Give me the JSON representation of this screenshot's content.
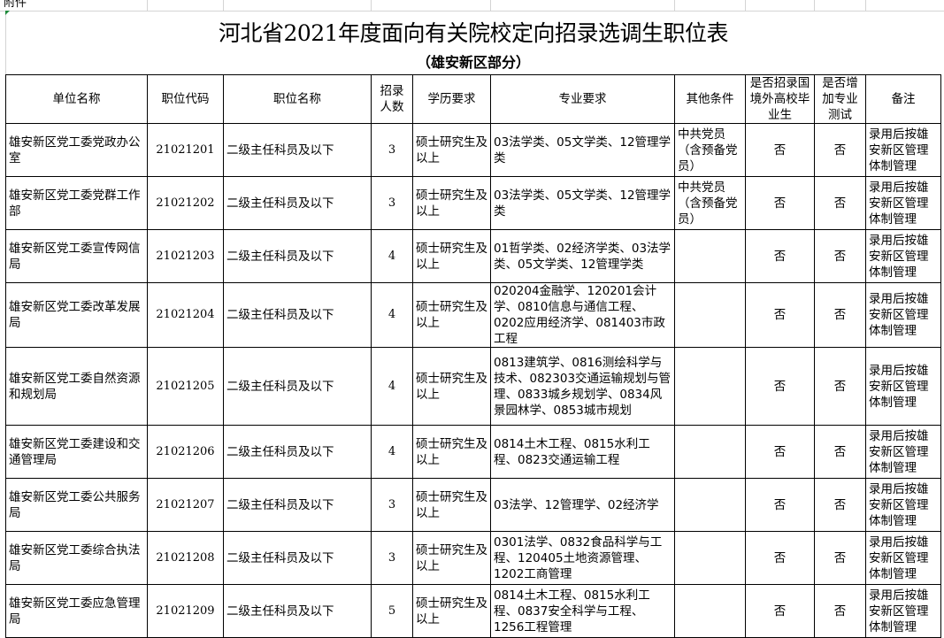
{
  "attachment_label": "附件",
  "title": "河北省2021年度面向有关院校定向招录选调生职位表",
  "subtitle": "（雄安新区部分）",
  "headers": [
    "单位名称",
    "职位代码",
    "职位名称",
    "招录人数",
    "学历要求",
    "专业要求",
    "其他条件",
    "是否招录国境外高校毕业生",
    "是否增加专业测试",
    "备注"
  ],
  "rows": [
    [
      "雄安新区党工委党政办公室",
      "21021201",
      "二级主任科员及以下",
      "3",
      "硕士研究生及以上",
      "03法学类、05文学类、12管理学类",
      "中共党员（含预备党员）",
      "否",
      "否",
      "录用后按雄安新区管理体制管理"
    ],
    [
      "雄安新区党工委党群工作部",
      "21021202",
      "二级主任科员及以下",
      "3",
      "硕士研究生及以上",
      "03法学类、05文学类、12管理学类",
      "中共党员（含预备党员）",
      "否",
      "否",
      "录用后按雄安新区管理体制管理"
    ],
    [
      "雄安新区党工委宣传网信局",
      "21021203",
      "二级主任科员及以下",
      "4",
      "硕士研究生及以上",
      "01哲学类、02经济学类、03法学类、05文学类、12管理学类",
      "",
      "否",
      "否",
      "录用后按雄安新区管理体制管理"
    ],
    [
      "雄安新区党工委改革发展局",
      "21021204",
      "二级主任科员及以下",
      "4",
      "硕士研究生及以上",
      "020204金融学、120201会计学、0810信息与通信工程、0202应用经济学、081403市政工程",
      "",
      "否",
      "否",
      "录用后按雄安新区管理体制管理"
    ],
    [
      "雄安新区党工委自然资源和规划局",
      "21021205",
      "二级主任科员及以下",
      "4",
      "硕士研究生及以上",
      "0813建筑学、0816测绘科学与技术、082303交通运输规划与管理、0833城乡规划学、0834风景园林学、0853城市规划",
      "",
      "否",
      "否",
      "录用后按雄安新区管理体制管理"
    ],
    [
      "雄安新区党工委建设和交通管理局",
      "21021206",
      "二级主任科员及以下",
      "4",
      "硕士研究生及以上",
      "0814土木工程、0815水利工程、0823交通运输工程",
      "",
      "否",
      "否",
      "录用后按雄安新区管理体制管理"
    ],
    [
      "雄安新区党工委公共服务局",
      "21021207",
      "二级主任科员及以下",
      "3",
      "硕士研究生及以上",
      "03法学、12管理学、02经济学",
      "",
      "否",
      "否",
      "录用后按雄安新区管理体制管理"
    ],
    [
      "雄安新区党工委综合执法局",
      "21021208",
      "二级主任科员及以下",
      "3",
      "硕士研究生及以上",
      "0301法学、0832食品科学与工程、120405土地资源管理、1202工商管理",
      "",
      "否",
      "否",
      "录用后按雄安新区管理体制管理"
    ],
    [
      "雄安新区党工委应急管理局",
      "21021209",
      "二级主任科员及以下",
      "5",
      "硕士研究生及以上",
      "0814土木工程、0815水利工程、0837安全科学与工程、1256工程管理",
      "",
      "否",
      "否",
      "录用后按雄安新区管理体制管理"
    ]
  ]
}
